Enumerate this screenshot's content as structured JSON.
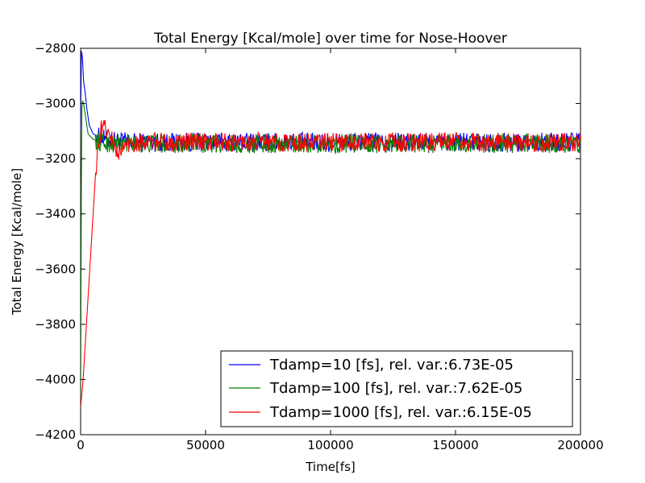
{
  "chart_data": {
    "type": "line",
    "title": "Total Energy [Kcal/mole] over time for Nose-Hoover",
    "xlabel": "Time[fs]",
    "ylabel": "Total Energy [Kcal/mole]",
    "xlim": [
      0,
      200000
    ],
    "ylim": [
      -4200,
      -2800
    ],
    "xticks": [
      0,
      50000,
      100000,
      150000,
      200000
    ],
    "yticks": [
      -4200,
      -4000,
      -3800,
      -3600,
      -3400,
      -3200,
      -3000,
      -2800
    ],
    "xtick_labels": [
      "0",
      "50000",
      "100000",
      "150000",
      "200000"
    ],
    "ytick_labels": [
      "−4200",
      "−4000",
      "−3800",
      "−3600",
      "−3400",
      "−3200",
      "−3000",
      "−2800"
    ],
    "legend_position": "lower-right",
    "grid": false,
    "series": [
      {
        "name": "Tdamp=10 [fs], rel. var.:6.73E-05",
        "color": "#0000ff",
        "x": [
          0,
          300,
          700,
          1200,
          1800,
          2500,
          3500,
          5000,
          7000,
          10000,
          20000,
          40000,
          60000,
          80000,
          100000,
          120000,
          140000,
          160000,
          180000,
          200000
        ],
        "y": [
          -3100,
          -2810,
          -2830,
          -2920,
          -2960,
          -3020,
          -3080,
          -3110,
          -3120,
          -3130,
          -3140,
          -3140,
          -3140,
          -3140,
          -3140,
          -3140,
          -3140,
          -3140,
          -3140,
          -3140
        ]
      },
      {
        "name": "Tdamp=100 [fs], rel. var.:7.62E-05",
        "color": "#008000",
        "x": [
          0,
          150,
          300,
          500,
          800,
          1200,
          2000,
          3000,
          5000,
          8000,
          12000,
          20000,
          40000,
          60000,
          80000,
          100000,
          120000,
          140000,
          160000,
          180000,
          200000
        ],
        "y": [
          -4100,
          -3700,
          -3300,
          -3020,
          -2990,
          -3000,
          -3050,
          -3110,
          -3130,
          -3140,
          -3145,
          -3145,
          -3145,
          -3145,
          -3145,
          -3145,
          -3145,
          -3145,
          -3145,
          -3145,
          -3145
        ]
      },
      {
        "name": "Tdamp=1000 [fs], rel. var.:6.15E-05",
        "color": "#ff0000",
        "x": [
          0,
          1000,
          2000,
          3000,
          4000,
          5000,
          6000,
          7000,
          8000,
          9000,
          10000,
          12000,
          14000,
          16000,
          18000,
          20000,
          40000,
          60000,
          80000,
          100000,
          120000,
          140000,
          160000,
          180000,
          200000
        ],
        "y": [
          -4100,
          -4000,
          -3850,
          -3700,
          -3550,
          -3400,
          -3250,
          -3150,
          -3100,
          -3080,
          -3090,
          -3120,
          -3170,
          -3180,
          -3150,
          -3140,
          -3140,
          -3140,
          -3140,
          -3140,
          -3140,
          -3140,
          -3140,
          -3140,
          -3140
        ]
      }
    ]
  }
}
